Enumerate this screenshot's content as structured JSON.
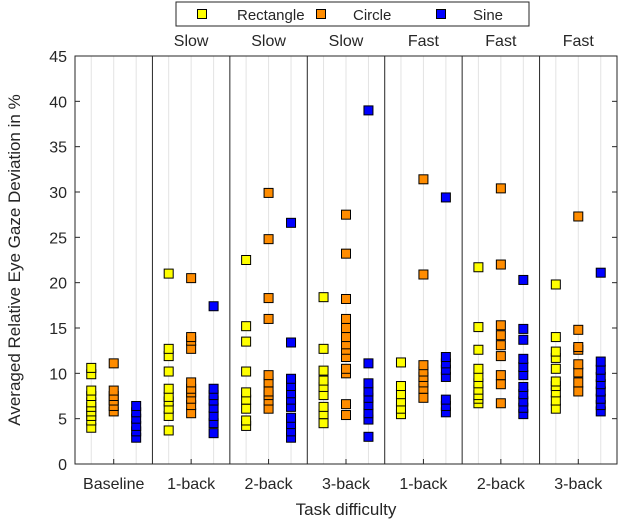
{
  "chart_data": {
    "type": "scatter",
    "xlabel": "Task difficulty",
    "ylabel": "Averaged Relative Eye Gaze Deviation in %",
    "ylim": [
      0,
      45
    ],
    "yticks": [
      0,
      5,
      10,
      15,
      20,
      25,
      30,
      35,
      40,
      45
    ],
    "grid": "vertical minor lines within groups",
    "legend_position": "top-center",
    "categories": [
      "Baseline",
      "1-back",
      "2-back",
      "3-back",
      "1-back",
      "2-back",
      "3-back"
    ],
    "speed_labels": [
      "",
      "Slow",
      "Slow",
      "Slow",
      "Fast",
      "Fast",
      "Fast"
    ],
    "series": [
      {
        "name": "Rectangle",
        "color": "#ffff00",
        "groups": [
          [
            4.0,
            4.8,
            5.3,
            5.8,
            6.3,
            6.8,
            7.5,
            8.1,
            9.9,
            10.6
          ],
          [
            3.7,
            5.3,
            6.1,
            6.9,
            7.4,
            8.3,
            10.2,
            11.9,
            12.7,
            21.0
          ],
          [
            4.2,
            4.8,
            6.1,
            7.1,
            7.9,
            10.2,
            13.5,
            15.2,
            22.5
          ],
          [
            4.5,
            5.5,
            6.3,
            7.6,
            8.5,
            9.2,
            10.3,
            12.7,
            18.4
          ],
          [
            5.5,
            6.1,
            6.9,
            7.7,
            8.6,
            11.2
          ],
          [
            6.7,
            7.2,
            7.6,
            8.2,
            8.9,
            9.6,
            10.5,
            12.6,
            15.1,
            21.7
          ],
          [
            6.1,
            7.0,
            7.9,
            8.6,
            9.1,
            10.5,
            11.7,
            12.4,
            14.0,
            19.8
          ]
        ]
      },
      {
        "name": "Circle",
        "color": "#ff8c00",
        "groups": [
          [
            5.8,
            6.4,
            7.0,
            7.5,
            8.1,
            11.1
          ],
          [
            5.6,
            6.5,
            7.2,
            7.9,
            8.3,
            9.0,
            12.7,
            13.6,
            14.0,
            20.5
          ],
          [
            6.1,
            7.0,
            7.6,
            8.0,
            9.0,
            9.8,
            16.0,
            18.3,
            24.8,
            29.9
          ],
          [
            5.4,
            6.6,
            10.0,
            10.5,
            11.8,
            12.6,
            13.2,
            14.0,
            15.0,
            16.0,
            18.2,
            23.2,
            27.5
          ],
          [
            7.3,
            8.3,
            9.0,
            9.6,
            10.2,
            10.9,
            20.9,
            31.4
          ],
          [
            6.7,
            8.8,
            9.8,
            11.9,
            13.1,
            14.2,
            15.3,
            22.0,
            30.4
          ],
          [
            8.0,
            9.0,
            10.1,
            11.0,
            12.6,
            12.9,
            14.8,
            27.3
          ]
        ]
      },
      {
        "name": "Sine",
        "color": "#0000ff",
        "groups": [
          [
            2.9,
            3.6,
            4.2,
            5.0,
            5.7,
            6.4
          ],
          [
            3.4,
            4.5,
            5.3,
            6.2,
            7.0,
            7.6,
            8.3,
            17.4
          ],
          [
            2.9,
            3.6,
            4.4,
            5.1,
            6.3,
            7.1,
            7.8,
            8.6,
            9.4,
            13.4,
            26.6
          ],
          [
            3.0,
            4.9,
            5.6,
            6.5,
            7.3,
            8.0,
            8.9,
            11.1,
            39.0
          ],
          [
            5.7,
            6.4,
            7.1,
            9.6,
            10.4,
            11.1,
            11.8,
            29.4
          ],
          [
            5.5,
            6.2,
            6.9,
            7.7,
            8.5,
            9.8,
            10.7,
            11.6,
            13.7,
            14.9,
            20.3
          ],
          [
            5.8,
            6.5,
            7.2,
            8.0,
            8.8,
            9.6,
            10.4,
            11.3,
            21.1
          ]
        ]
      }
    ]
  }
}
